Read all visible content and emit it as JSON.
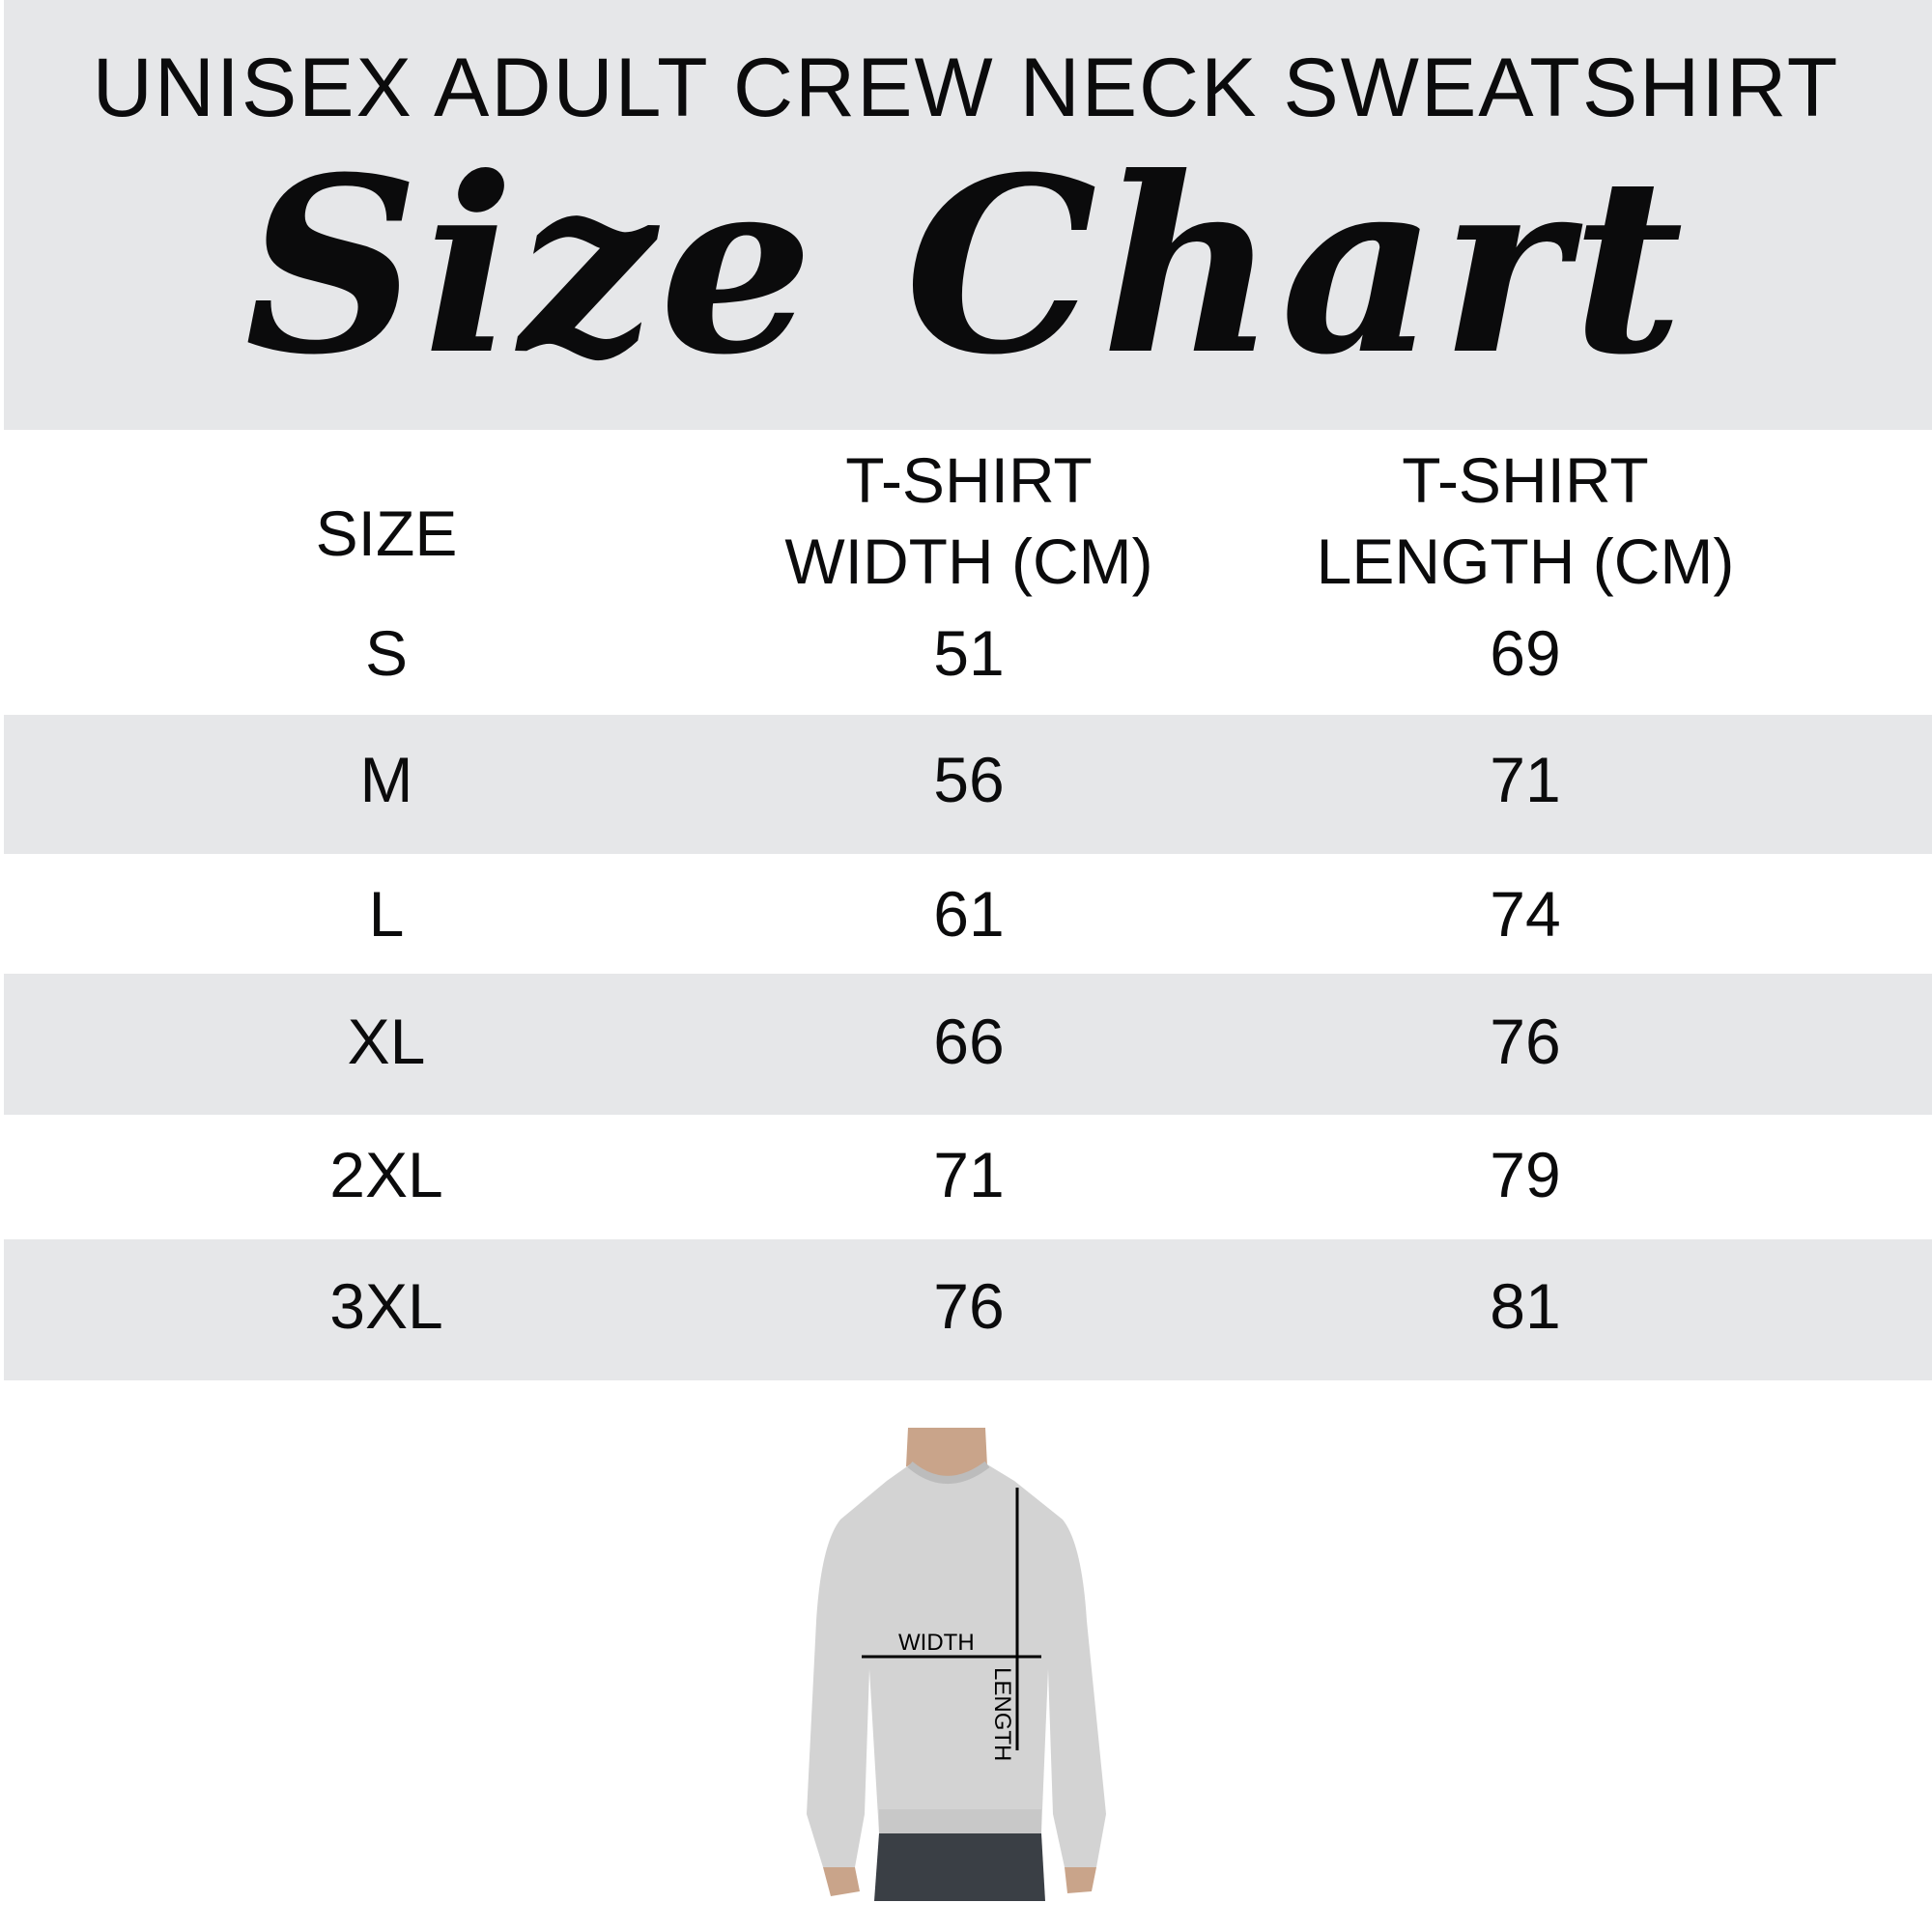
{
  "header": {
    "subtitle": "UNISEX ADULT CREW NECK SWEATSHIRT",
    "title": "Size Chart",
    "background_color": "#e6e7e9"
  },
  "table": {
    "columns": [
      {
        "line1": "SIZE",
        "line2": ""
      },
      {
        "line1": "T-SHIRT",
        "line2": "WIDTH (CM)"
      },
      {
        "line1": "T-SHIRT",
        "line2": "LENGTH (CM)"
      }
    ],
    "rows": [
      {
        "size": "S",
        "width": "51",
        "length": "69"
      },
      {
        "size": "M",
        "width": "56",
        "length": "71"
      },
      {
        "size": "L",
        "width": "61",
        "length": "74"
      },
      {
        "size": "XL",
        "width": "66",
        "length": "76"
      },
      {
        "size": "2XL",
        "width": "71",
        "length": "79"
      },
      {
        "size": "3XL",
        "width": "76",
        "length": "81"
      }
    ],
    "stripe_color": "#e6e7e9"
  },
  "photo": {
    "width_label": "WIDTH",
    "length_label": "LENGTH",
    "garment_color": "#d3d3d3"
  }
}
